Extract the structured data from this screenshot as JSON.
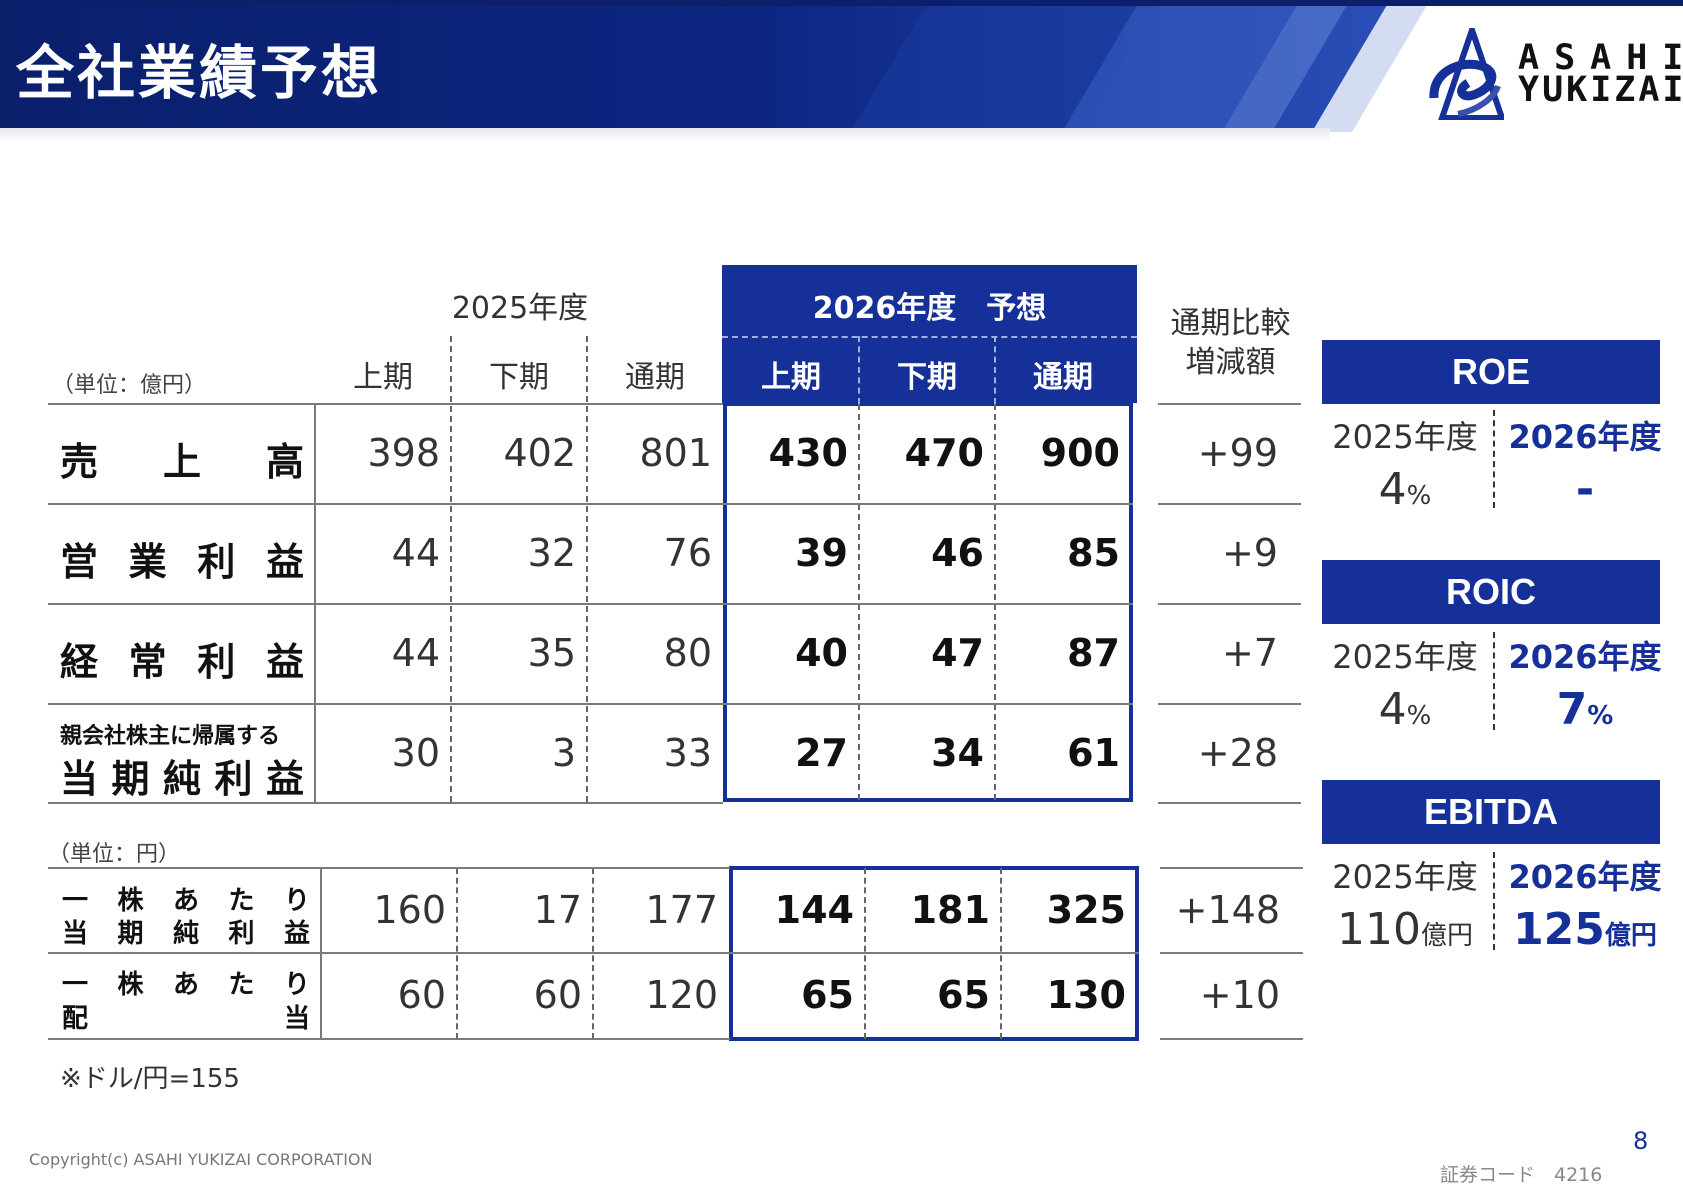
{
  "header": {
    "title": "全社業績予想"
  },
  "logo": {
    "line1": "ASAHI",
    "line2": "YUKIZAI"
  },
  "table": {
    "unit_label": "（単位：億円）",
    "fy2025_label": "2025年度",
    "fy2026_label": "2026年度　予想",
    "compare_label_1": "通期比較",
    "compare_label_2": "増減額",
    "periods": [
      "上期",
      "下期",
      "通期"
    ],
    "rows": [
      {
        "label": "売上高",
        "chars": [
          "売",
          "上",
          "高"
        ],
        "fy2025": [
          "398",
          "402",
          "801"
        ],
        "fy2026": [
          "430",
          "470",
          "900"
        ],
        "diff": "+99"
      },
      {
        "label": "営業利益",
        "chars": [
          "営",
          "業",
          "利",
          "益"
        ],
        "fy2025": [
          "44",
          "32",
          "76"
        ],
        "fy2026": [
          "39",
          "46",
          "85"
        ],
        "diff": "+9"
      },
      {
        "label": "経常利益",
        "chars": [
          "経",
          "常",
          "利",
          "益"
        ],
        "fy2025": [
          "44",
          "35",
          "80"
        ],
        "fy2026": [
          "40",
          "47",
          "87"
        ],
        "diff": "+7"
      },
      {
        "label_small": "親会社株主に帰属する",
        "chars": [
          "当",
          "期",
          "純",
          "利",
          "益"
        ],
        "fy2025": [
          "30",
          "3",
          "33"
        ],
        "fy2026": [
          "27",
          "34",
          "61"
        ],
        "diff": "+28"
      }
    ],
    "unit_label_2": "（単位：円）",
    "rows2": [
      {
        "line1": [
          "一",
          "株",
          "あ",
          "た",
          "り"
        ],
        "line2": [
          "当",
          "期",
          "純",
          "利",
          "益"
        ],
        "fy2025": [
          "160",
          "17",
          "177"
        ],
        "fy2026": [
          "144",
          "181",
          "325"
        ],
        "diff": "+148"
      },
      {
        "line1": [
          "一",
          "株",
          "あ",
          "た",
          "り"
        ],
        "line2": [
          "配",
          "当"
        ],
        "fy2025": [
          "60",
          "60",
          "120"
        ],
        "fy2026": [
          "65",
          "65",
          "130"
        ],
        "diff": "+10"
      }
    ]
  },
  "kpis": [
    {
      "title": "ROE",
      "y25_label": "2025年度",
      "y26_label": "2026年度",
      "y25_value": "4",
      "y25_unit": "%",
      "y26_value": "-",
      "y26_unit": ""
    },
    {
      "title": "ROIC",
      "y25_label": "2025年度",
      "y26_label": "2026年度",
      "y25_value": "4",
      "y25_unit": "%",
      "y26_value": "7",
      "y26_unit": "%"
    },
    {
      "title": "EBITDA",
      "y25_label": "2025年度",
      "y26_label": "2026年度",
      "y25_value": "110",
      "y25_unit": "億円",
      "y26_value": "125",
      "y26_unit": "億円"
    }
  ],
  "note": "※ドル/円=155",
  "footer": {
    "copyright": "Copyright(c) ASAHI YUKIZAI CORPORATION",
    "page_number": "8",
    "security_code": "証券コード　4216"
  },
  "colors": {
    "primary": "#16309a",
    "header_dark": "#0a1f6e"
  }
}
